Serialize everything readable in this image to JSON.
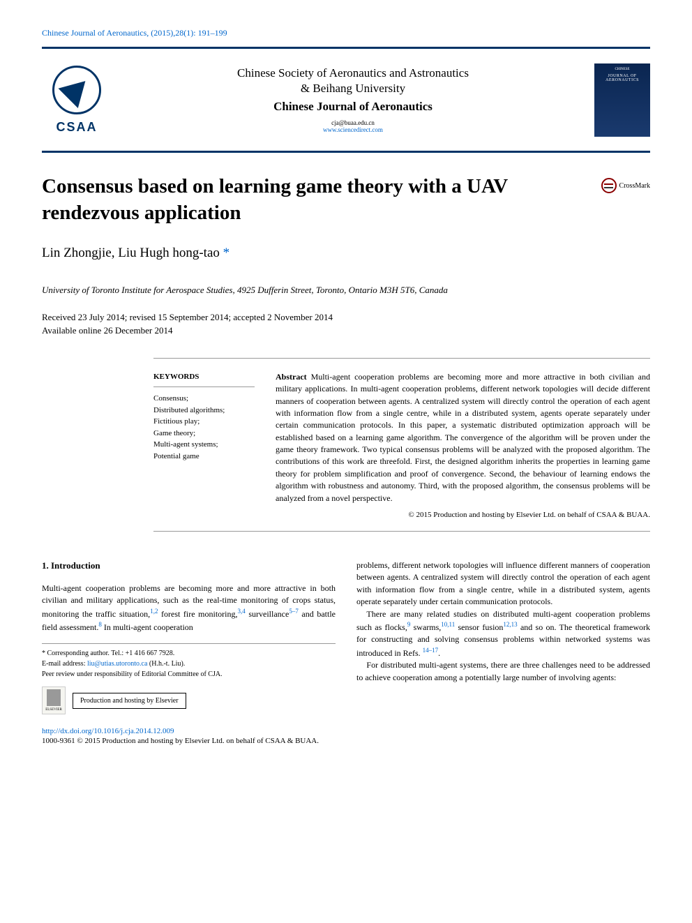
{
  "journal_ref": "Chinese Journal of Aeronautics, (2015),28(1): 191–199",
  "banner": {
    "logo_text": "CSAA",
    "society": "Chinese Society of Aeronautics and Astronautics",
    "university": "& Beihang University",
    "journal_name": "Chinese Journal of Aeronautics",
    "email": "cja@buaa.edu.cn",
    "url": "www.sciencedirect.com",
    "cover_title": "JOURNAL OF AERONAUTICS",
    "cover_top": "CHINESE"
  },
  "crossmark_label": "CrossMark",
  "title": "Consensus based on learning game theory with a UAV rendezvous application",
  "authors": "Lin Zhongjie, Liu Hugh hong-tao",
  "author_marker": " *",
  "affiliation": "University of Toronto Institute for Aerospace Studies, 4925 Dufferin Street, Toronto, Ontario M3H 5T6, Canada",
  "dates_line1": "Received 23 July 2014; revised 15 September 2014; accepted 2 November 2014",
  "dates_line2": "Available online 26 December 2014",
  "keywords": {
    "heading": "KEYWORDS",
    "items": [
      "Consensus;",
      "Distributed algorithms;",
      "Fictitious play;",
      "Game theory;",
      "Multi-agent systems;",
      "Potential game"
    ]
  },
  "abstract": {
    "label": "Abstract",
    "text": "   Multi-agent cooperation problems are becoming more and more attractive in both civilian and military applications. In multi-agent cooperation problems, different network topologies will decide different manners of cooperation between agents. A centralized system will directly control the operation of each agent with information flow from a single centre, while in a distributed system, agents operate separately under certain communication protocols. In this paper, a systematic distributed optimization approach will be established based on a learning game algorithm. The convergence of the algorithm will be proven under the game theory framework. Two typical consensus problems will be analyzed with the proposed algorithm. The contributions of this work are threefold. First, the designed algorithm inherits the properties in learning game theory for problem simplification and proof of convergence. Second, the behaviour of learning endows the algorithm with robustness and autonomy. Third, with the proposed algorithm, the consensus problems will be analyzed from a novel perspective.",
    "copyright": "© 2015 Production and hosting by Elsevier Ltd. on behalf of CSAA & BUAA."
  },
  "section1_heading": "1. Introduction",
  "col1_p1_a": "Multi-agent cooperation problems are becoming more and more attractive in both civilian and military applications, such as the real-time monitoring of crops status, monitoring the traffic situation,",
  "col1_p1_b": " forest fire monitoring,",
  "col1_p1_c": " surveillance",
  "col1_p1_d": " and battle field assessment.",
  "col1_p1_e": " In multi-agent cooperation",
  "refs": {
    "r12": "1,2",
    "r34": "3,4",
    "r57": "5–7",
    "r8": "8",
    "r9": "9",
    "r1011": "10,11",
    "r1213": "12,13",
    "r1417": "14–17"
  },
  "col2_p1": "problems, different network topologies will influence different manners of cooperation between agents. A centralized system will directly control the operation of each agent with information flow from a single centre, while in a distributed system, agents operate separately under certain communication protocols.",
  "col2_p2_a": "There are many related studies on distributed multi-agent cooperation problems such as flocks,",
  "col2_p2_b": " swarms,",
  "col2_p2_c": " sensor fusion",
  "col2_p2_d": " and so on. The theoretical framework for constructing and solving consensus problems within networked systems was introduced in Refs. ",
  "col2_p2_e": ".",
  "col2_p3": "For distributed multi-agent systems, there are three challenges need to be addressed to achieve cooperation among a potentially large number of involving agents:",
  "footer": {
    "corresp_label": "* Corresponding author. Tel.: +1 416 667 7928.",
    "email_label": "E-mail address: ",
    "email": "liu@utias.utoronto.ca",
    "email_suffix": " (H.h.-t. Liu).",
    "peer": "Peer review under responsibility of Editorial Committee of CJA.",
    "elsevier": "ELSEVIER",
    "hosting": "Production and hosting by Elsevier"
  },
  "doi": "http://dx.doi.org/10.1016/j.cja.2014.12.009",
  "issn": "1000-9361 © 2015 Production and hosting by Elsevier Ltd. on behalf of CSAA & BUAA.",
  "colors": {
    "link": "#0066cc",
    "banner_border": "#003366",
    "text": "#000000"
  }
}
